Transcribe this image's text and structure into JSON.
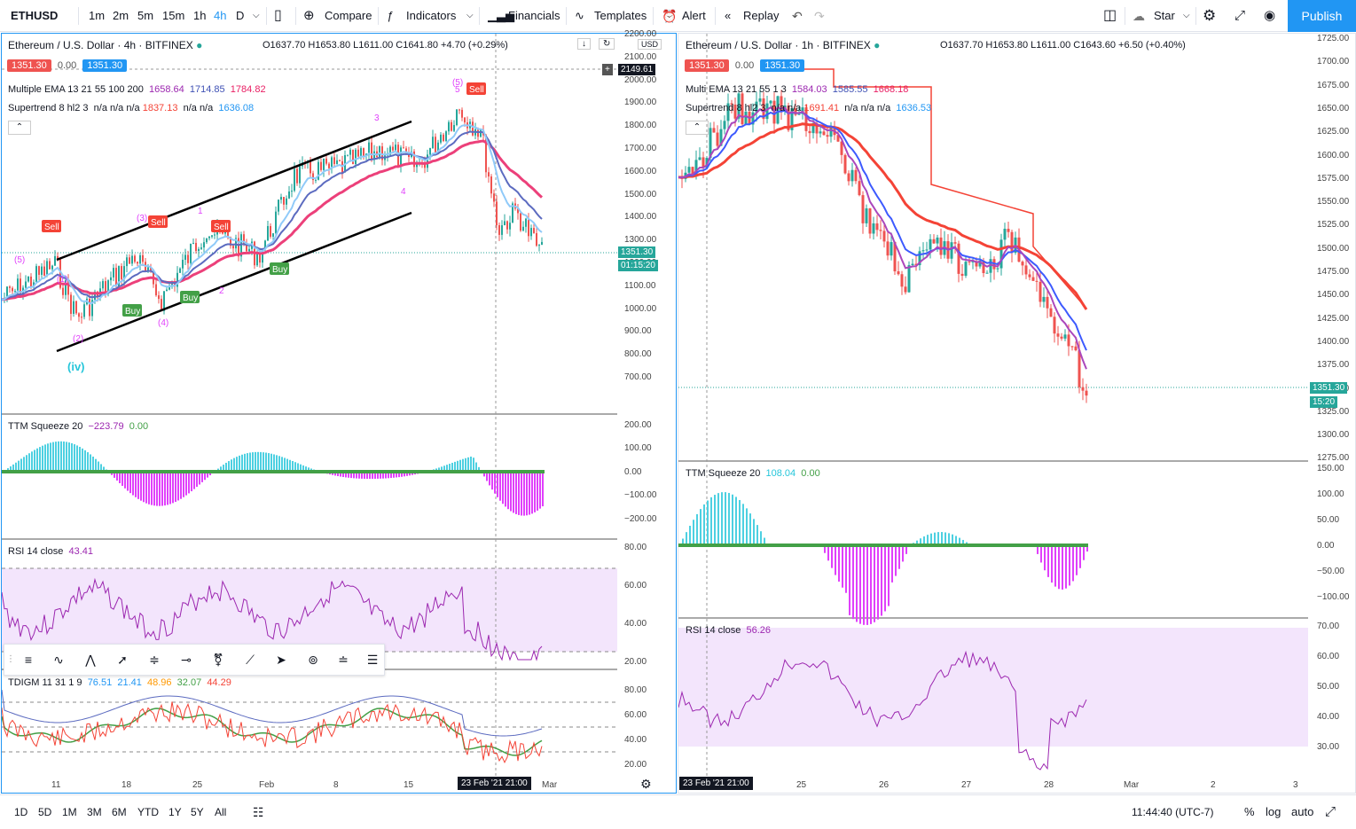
{
  "toolbar": {
    "symbol": "ETHUSD",
    "intervals": [
      "1m",
      "2m",
      "5m",
      "15m",
      "1h",
      "4h",
      "D"
    ],
    "active_interval": "4h",
    "compare": "Compare",
    "indicators": "Indicators",
    "financials": "Financials",
    "templates": "Templates",
    "alert": "Alert",
    "replay": "Replay",
    "star": "Star",
    "publish": "Publish"
  },
  "left_chart": {
    "title": "Ethereum / U.S. Dollar · 4h · BITFINEX",
    "ohlc": "O1637.70 H1653.80 L1611.00 C1641.80 +4.70 (+0.29%)",
    "bid": "1351.30",
    "spread": "0.00",
    "ask": "1351.30",
    "ema_legend": "Multiple EMA 13 21 55 100 200",
    "ema_vals": [
      "1658.64",
      "1714.85",
      "1784.82"
    ],
    "st_legend": "Supertrend 8 hl2 3",
    "st_na1": "n/a n/a n/a",
    "st_val1": "1837.13",
    "st_na2": "n/a n/a",
    "st_val2": "1636.08",
    "currency": "USD",
    "price_axis": [
      "2200.00",
      "2100.00",
      "2000.00",
      "1900.00",
      "1800.00",
      "1700.00",
      "1600.00",
      "1500.00",
      "1400.00",
      "1300.00",
      "1200.00",
      "1100.00",
      "1000.00",
      "900.00",
      "800.00",
      "700.00"
    ],
    "crosshair_price": "2149.61",
    "last_price": "1351.30",
    "countdown": "01:15:20",
    "ttm_legend": "TTM Squeeze 20",
    "ttm_vals": [
      "−223.79",
      "0.00"
    ],
    "ttm_axis": [
      "200.00",
      "100.00",
      "0.00",
      "−100.00",
      "−200.00"
    ],
    "rsi_legend": "RSI 14 close",
    "rsi_val": "43.41",
    "rsi_axis": [
      "80.00",
      "60.00",
      "40.00",
      "20.00"
    ],
    "tdi_legend": "TDIGM 11 31 1 9",
    "tdi_vals": [
      "76.51",
      "21.41",
      "48.96",
      "32.07",
      "44.29"
    ],
    "tdi_axis": [
      "80.00",
      "60.00",
      "40.00",
      "20.00"
    ],
    "time_axis": [
      "11",
      "18",
      "25",
      "Feb",
      "8",
      "15",
      "Mar"
    ],
    "crosshair_time": "23 Feb '21   21:00",
    "wave_labels": [
      "(5)",
      "(1)",
      "(2)",
      "(3)",
      "(4)",
      "(5)",
      "(iv)",
      "1",
      "2",
      "3",
      "4",
      "5"
    ],
    "signals": {
      "sell": "Sell",
      "buy": "Buy"
    }
  },
  "right_chart": {
    "title": "Ethereum / U.S. Dollar · 1h · BITFINEX",
    "ohlc": "O1637.70 H1653.80 L1611.00 C1643.60 +6.50 (+0.40%)",
    "bid": "1351.30",
    "spread": "0.00",
    "ask": "1351.30",
    "ema_legend": "Multi EMA 13 21 55 1 3",
    "ema_vals": [
      "1584.03",
      "1585.55",
      "1668.18"
    ],
    "st_legend": "Supertrend 8 hl2 3",
    "st_na1": "n/a n/a",
    "st_val1": "1691.41",
    "st_na2": "n/a n/a n/a",
    "st_val2": "1636.53",
    "price_axis": [
      "1725.00",
      "1700.00",
      "1675.00",
      "1650.00",
      "1625.00",
      "1600.00",
      "1575.00",
      "1550.00",
      "1525.00",
      "1500.00",
      "1475.00",
      "1450.00",
      "1425.00",
      "1400.00",
      "1375.00",
      "1350.00",
      "1325.00",
      "1300.00",
      "1275.00"
    ],
    "last_price": "1351.30",
    "countdown": "15:20",
    "ttm_legend": "TTM Squeeze 20",
    "ttm_vals": [
      "108.04",
      "0.00"
    ],
    "ttm_axis": [
      "150.00",
      "100.00",
      "50.00",
      "0.00",
      "−50.00",
      "−100.00"
    ],
    "rsi_legend": "RSI 14 close",
    "rsi_val": "56.26",
    "rsi_axis": [
      "70.00",
      "60.00",
      "50.00",
      "40.00",
      "30.00"
    ],
    "time_axis": [
      "25",
      "26",
      "27",
      "28",
      "Mar",
      "2",
      "3"
    ],
    "crosshair_time": "23 Feb '21   21:00"
  },
  "bottom": {
    "ranges": [
      "1D",
      "5D",
      "1M",
      "3M",
      "6M",
      "YTD",
      "1Y",
      "5Y",
      "All"
    ],
    "clock": "11:44:40 (UTC-7)",
    "pct": "%",
    "log": "log",
    "auto": "auto"
  },
  "colors": {
    "accent": "#2196f3",
    "up": "#26a69a",
    "down": "#ef5350",
    "ema_fast": "#2196f3",
    "ema_slow": "#f23f6b",
    "rsi": "#9c27b0",
    "sell": "#f44336",
    "buy": "#43a047"
  }
}
